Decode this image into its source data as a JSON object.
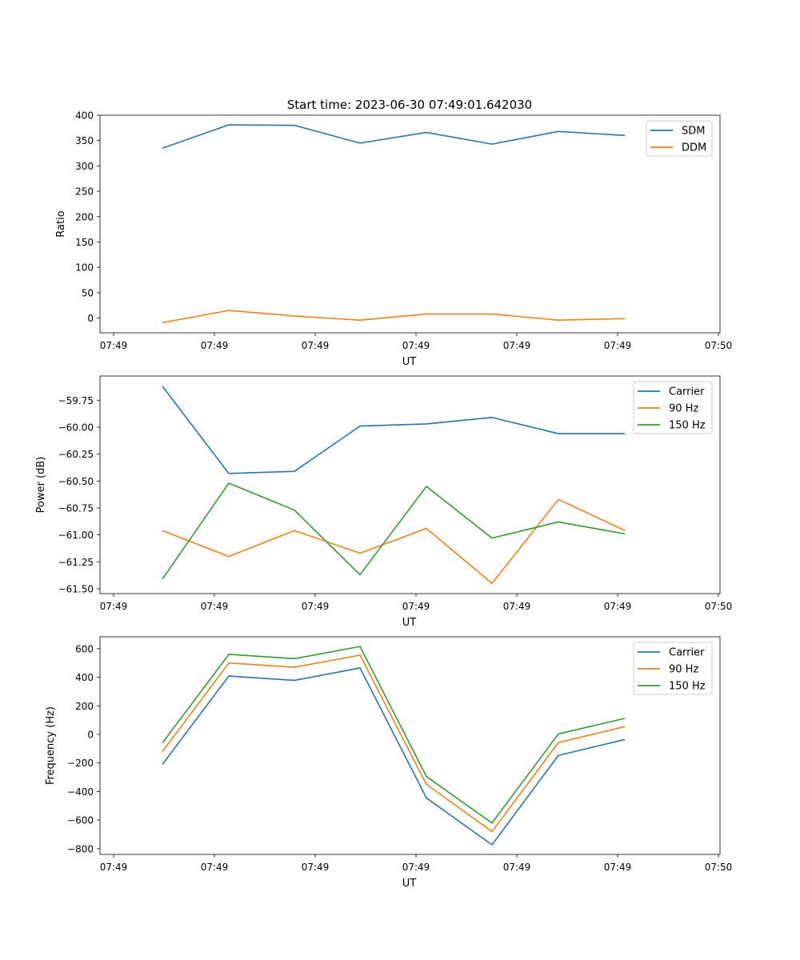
{
  "figure": {
    "title": "Start time: 2023-06-30 07:49:01.642030"
  },
  "colors": {
    "blue": "#1f77b4",
    "orange": "#ff7f0e",
    "green": "#2ca02c"
  },
  "chart_data": [
    {
      "type": "line",
      "title": "Start time: 2023-06-30 07:49:01.642030",
      "xlabel": "UT",
      "ylabel": "Ratio",
      "x_tick_labels": [
        "07:49",
        "07:49",
        "07:49",
        "07:49",
        "07:49",
        "07:49",
        "07:50"
      ],
      "y_ticks": [
        0,
        50,
        100,
        150,
        200,
        250,
        300,
        350,
        400
      ],
      "y_tick_labels": [
        "0",
        "50",
        "100",
        "150",
        "200",
        "250",
        "300",
        "350",
        "400"
      ],
      "ylim": [
        -29,
        400
      ],
      "legend_position": "top-right",
      "series": [
        {
          "name": "SDM",
          "color": "#1f77b4",
          "values": [
            335,
            381,
            380,
            345,
            366,
            343,
            368,
            360
          ]
        },
        {
          "name": "DDM",
          "color": "#ff7f0e",
          "values": [
            -9,
            15,
            4,
            -4,
            8,
            8,
            -4,
            -1
          ]
        }
      ]
    },
    {
      "type": "line",
      "xlabel": "UT",
      "ylabel": "Power (dB)",
      "x_tick_labels": [
        "07:49",
        "07:49",
        "07:49",
        "07:49",
        "07:49",
        "07:49",
        "07:50"
      ],
      "y_ticks": [
        -59.75,
        -60.0,
        -60.25,
        -60.5,
        -60.75,
        -61.0,
        -61.25,
        -61.5
      ],
      "y_tick_labels": [
        "−59.75",
        "−60.00",
        "−60.25",
        "−60.50",
        "−60.75",
        "−61.00",
        "−61.25",
        "−61.50"
      ],
      "ylim": [
        -61.545,
        -59.525
      ],
      "legend_position": "top-right",
      "series": [
        {
          "name": "Carrier",
          "color": "#1f77b4",
          "values": [
            -59.62,
            -60.43,
            -60.41,
            -59.99,
            -59.97,
            -59.91,
            -60.06,
            -60.06
          ]
        },
        {
          "name": "90 Hz",
          "color": "#ff7f0e",
          "values": [
            -60.96,
            -61.2,
            -60.96,
            -61.17,
            -60.94,
            -61.45,
            -60.67,
            -60.96
          ]
        },
        {
          "name": "150 Hz",
          "color": "#2ca02c",
          "values": [
            -61.41,
            -60.52,
            -60.77,
            -61.37,
            -60.55,
            -61.03,
            -60.88,
            -60.99
          ]
        }
      ]
    },
    {
      "type": "line",
      "xlabel": "UT",
      "ylabel": "Frequency (Hz)",
      "x_tick_labels": [
        "07:49",
        "07:49",
        "07:49",
        "07:49",
        "07:49",
        "07:49",
        "07:50"
      ],
      "y_ticks": [
        600,
        400,
        200,
        0,
        -200,
        -400,
        -600,
        -800
      ],
      "y_tick_labels": [
        "600",
        "400",
        "200",
        "0",
        "−200",
        "−400",
        "−600",
        "−800"
      ],
      "ylim": [
        -840,
        683
      ],
      "legend_position": "top-right",
      "series": [
        {
          "name": "Carrier",
          "color": "#1f77b4",
          "values": [
            -210,
            408,
            378,
            465,
            -445,
            -773,
            -147,
            -36
          ]
        },
        {
          "name": "90 Hz",
          "color": "#ff7f0e",
          "values": [
            -120,
            500,
            470,
            555,
            -350,
            -680,
            -57,
            54
          ]
        },
        {
          "name": "150 Hz",
          "color": "#2ca02c",
          "values": [
            -60,
            560,
            530,
            615,
            -295,
            -620,
            3,
            112
          ]
        }
      ]
    }
  ]
}
